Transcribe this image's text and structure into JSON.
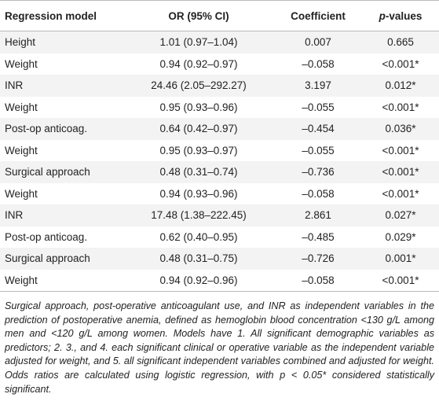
{
  "table": {
    "columns": [
      "Regression model",
      "OR (95% CI)",
      "Coefficient",
      {
        "italic": "p",
        "rest": "-values"
      }
    ],
    "rows": [
      [
        "Height",
        "1.01 (0.97–1.04)",
        "0.007",
        "0.665"
      ],
      [
        "Weight",
        "0.94 (0.92–0.97)",
        "–0.058",
        "<0.001*"
      ],
      [
        "INR",
        "24.46 (2.05–292.27)",
        "3.197",
        "0.012*"
      ],
      [
        "Weight",
        "0.95 (0.93–0.96)",
        "–0.055",
        "<0.001*"
      ],
      [
        "Post-op anticoag.",
        "0.64 (0.42–0.97)",
        "–0.454",
        "0.036*"
      ],
      [
        "Weight",
        "0.95 (0.93–0.97)",
        "–0.055",
        "<0.001*"
      ],
      [
        "Surgical approach",
        "0.48 (0.31–0.74)",
        "–0.736",
        "<0.001*"
      ],
      [
        "Weight",
        "0.94 (0.93–0.96)",
        "–0.058",
        "<0.001*"
      ],
      [
        "INR",
        "17.48 (1.38–222.45)",
        "2.861",
        "0.027*"
      ],
      [
        "Post-op anticoag.",
        "0.62 (0.40–0.95)",
        "–0.485",
        "0.029*"
      ],
      [
        "Surgical approach",
        "0.48 (0.31–0.75)",
        "–0.726",
        "0.001*"
      ],
      [
        "Weight",
        "0.94 (0.92–0.96)",
        "–0.058",
        "<0.001*"
      ]
    ]
  },
  "footnote": "Surgical approach, post-operative anticoagulant use, and INR as independent variables in the prediction of postoperative anemia, defined as hemoglobin blood concentration <130 g/L among men and <120 g/L among women. Models have 1. All significant demographic variables as predictors; 2. 3., and 4. each significant clinical or operative variable as the independent variable adjusted for weight, and 5. all significant independent variables combined and adjusted for weight. Odds ratios are calculated using logistic regression, with p < 0.05* considered statistically significant."
}
